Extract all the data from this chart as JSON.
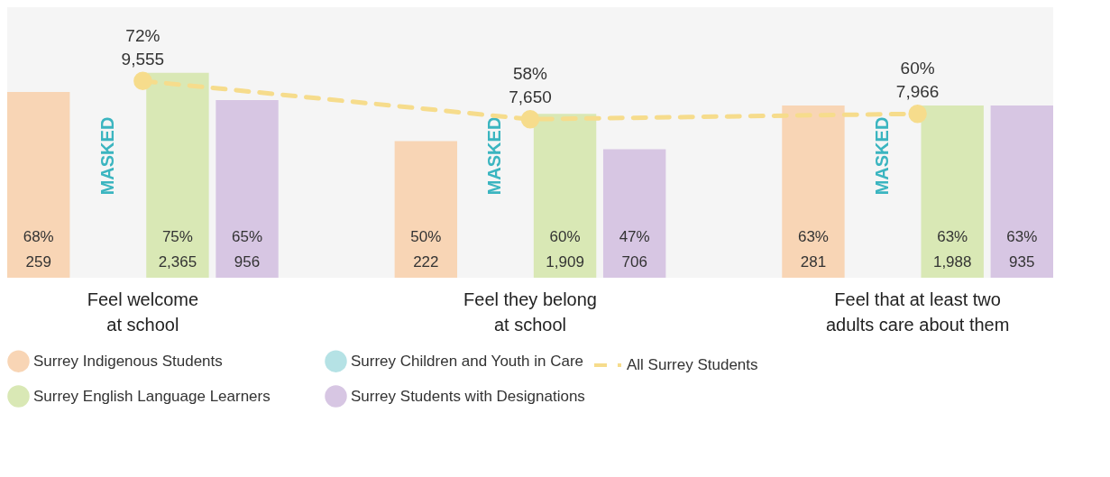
{
  "chart_data": {
    "type": "bar",
    "categories": [
      "Feel welcome\nat school",
      "Feel they belong\nat school",
      "Feel that at least two\nadults care about them"
    ],
    "series": [
      {
        "name": "Surrey Indigenous Students",
        "color": "#f8d5b5",
        "values": [
          68,
          50,
          63
        ],
        "value_labels": [
          "68%\n259",
          "50%\n222",
          "63%\n281"
        ]
      },
      {
        "name": "Surrey Children and Youth in Care",
        "color": "#b5e2e5",
        "values": [
          null,
          null,
          null
        ],
        "value_labels": [
          "MASKED",
          "MASKED",
          "MASKED"
        ]
      },
      {
        "name": "Surrey English Language Learners",
        "color": "#d9e8b5",
        "values": [
          75,
          60,
          63
        ],
        "value_labels": [
          "75%\n2,365",
          "60%\n1,909",
          "63%\n1,988"
        ]
      },
      {
        "name": "Surrey Students with Designations",
        "color": "#d7c6e3",
        "values": [
          65,
          47,
          63
        ],
        "value_labels": [
          "65%\n956",
          "47%\n706",
          "63%\n935"
        ]
      },
      {
        "name": "All Surrey Students",
        "type": "line",
        "color": "#f6dc8c",
        "values": [
          72,
          58,
          60
        ],
        "value_labels": [
          "72%\n9,555",
          "58%\n7,650",
          "60%\n7,966"
        ],
        "marker": "circle",
        "line_style": "dashed"
      }
    ],
    "legend": "bottom",
    "grid": false
  }
}
